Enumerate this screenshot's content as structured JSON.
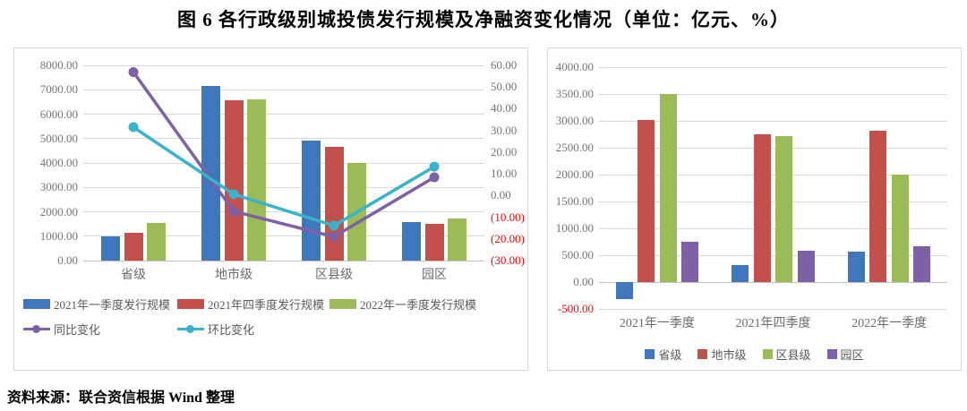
{
  "title": "图 6  各行政级别城投债发行规模及净融资变化情况（单位：亿元、%）",
  "source": "资料来源：联合资信根据 Wind 整理",
  "colors": {
    "blue": "#3f76bc",
    "red": "#c3504b",
    "green": "#9bbb59",
    "purple": "#7d60a5",
    "teal": "#38b3c9",
    "grid": "#d9d9d9",
    "axis_text": "#757575",
    "negative_text": "#ff0000"
  },
  "chart_data": [
    {
      "id": "issuance-by-admin-level",
      "type": "combo-bar-line",
      "categories": [
        "省级",
        "地市级",
        "区县级",
        "园区"
      ],
      "bar_series": [
        {
          "name": "2021年一季度发行规模",
          "color": "#3f76bc",
          "axis": "left",
          "values": [
            980,
            7150,
            4920,
            1560
          ]
        },
        {
          "name": "2021年四季度发行规模",
          "color": "#c3504b",
          "axis": "left",
          "values": [
            1150,
            6570,
            4660,
            1500
          ]
        },
        {
          "name": "2022年一季度发行规模",
          "color": "#9bbb59",
          "axis": "left",
          "values": [
            1550,
            6610,
            4000,
            1710
          ]
        }
      ],
      "line_series": [
        {
          "name": "同比变化",
          "color": "#7d60a5",
          "axis": "right",
          "values": [
            56.9,
            -7.3,
            -19.0,
            8.4
          ]
        },
        {
          "name": "环比变化",
          "color": "#38b3c9",
          "axis": "right",
          "values": [
            31.5,
            0.6,
            -13.9,
            13.3
          ]
        }
      ],
      "left_axis": {
        "min": 0,
        "max": 8000,
        "step": 1000,
        "tick_format": "fixed2"
      },
      "right_axis": {
        "min": -30,
        "max": 60,
        "step": 10,
        "tick_format": "paren-negative-red"
      },
      "grid": true,
      "legend_position": "bottom-left"
    },
    {
      "id": "net-financing-by-quarter",
      "type": "bar",
      "categories": [
        "2021年一季度",
        "2021年四季度",
        "2022年一季度"
      ],
      "series": [
        {
          "name": "省级",
          "color": "#3f76bc",
          "values": [
            -310,
            320,
            570
          ]
        },
        {
          "name": "地市级",
          "color": "#c3504b",
          "values": [
            3020,
            2750,
            2820
          ]
        },
        {
          "name": "区县级",
          "color": "#9bbb59",
          "values": [
            3500,
            2720,
            2000
          ]
        },
        {
          "name": "园区",
          "color": "#7d60a5",
          "values": [
            750,
            590,
            670
          ]
        }
      ],
      "y_axis": {
        "min": -500,
        "max": 4000,
        "step": 500,
        "tick_format": "negative-red"
      },
      "grid": true,
      "legend_position": "bottom-center"
    }
  ]
}
